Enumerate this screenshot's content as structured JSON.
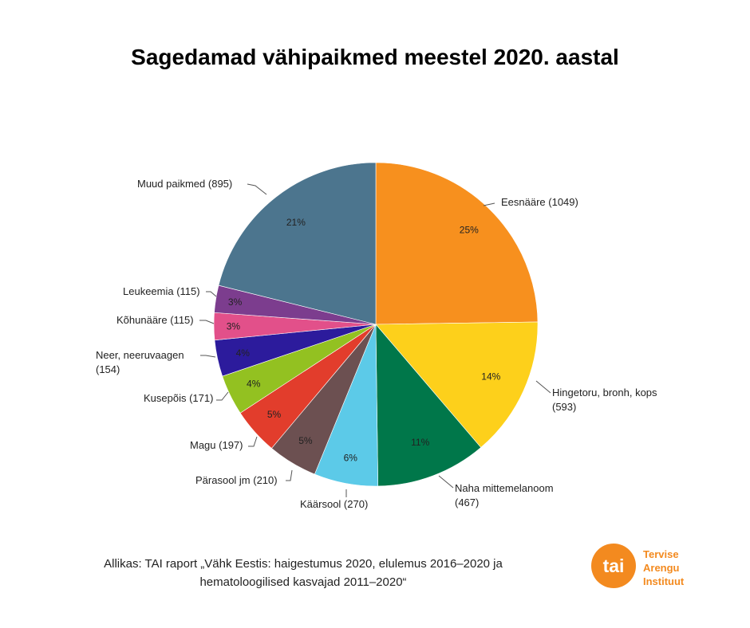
{
  "title": "Sagedamad vähipaikmed meestel 2020. aastal",
  "chart_data": {
    "type": "pie",
    "title": "Sagedamad vähipaikmed meestel 2020. aastal",
    "start": "12 o'clock, clockwise",
    "slices": [
      {
        "label": "Eesnääre (1049)",
        "name": "Eesnääre",
        "value": 1049,
        "pct_label": "25%",
        "color": "#f7901e"
      },
      {
        "label": "Hingetoru, bronh, kops (593)",
        "name": "Hingetoru, bronh, kops",
        "value": 593,
        "pct_label": "14%",
        "color": "#fdd01b"
      },
      {
        "label": "Naha mittemelanoom (467)",
        "name": "Naha mittemelanoom",
        "value": 467,
        "pct_label": "11%",
        "color": "#00774a"
      },
      {
        "label": "Käärsool (270)",
        "name": "Käärsool",
        "value": 270,
        "pct_label": "6%",
        "color": "#5ccae8"
      },
      {
        "label": "Pärasool jm (210)",
        "name": "Pärasool jm",
        "value": 210,
        "pct_label": "5%",
        "color": "#6c5051"
      },
      {
        "label": "Magu (197)",
        "name": "Magu",
        "value": 197,
        "pct_label": "5%",
        "color": "#e23d2c"
      },
      {
        "label": "Kusepõis (171)",
        "name": "Kusepõis",
        "value": 171,
        "pct_label": "4%",
        "color": "#93c121"
      },
      {
        "label": "Neer, neeruvaagen (154)",
        "name": "Neer, neeruvaagen",
        "value": 154,
        "pct_label": "4%",
        "color": "#2c1b9c"
      },
      {
        "label": "Kõhunääre (115)",
        "name": "Kõhunääre",
        "value": 115,
        "pct_label": "3%",
        "color": "#e2508a"
      },
      {
        "label": "Leukeemia (115)",
        "name": "Leukeemia",
        "value": 115,
        "pct_label": "3%",
        "color": "#7c3d8e"
      },
      {
        "label": "Muud paikmed (895)",
        "name": "Muud paikmed",
        "value": 895,
        "pct_label": "21%",
        "color": "#4c758e"
      }
    ]
  },
  "source": {
    "line1": "Allikas: TAI raport „Vähk Eestis: haigestumus 2020, elulemus 2016–2020 ja",
    "line2": "hematoloogilised kasvajad 2011–2020“"
  },
  "logo": {
    "mark": "tai",
    "words": [
      "Tervise",
      "Arengu",
      "Instituut"
    ],
    "color": "#f38a1f"
  }
}
